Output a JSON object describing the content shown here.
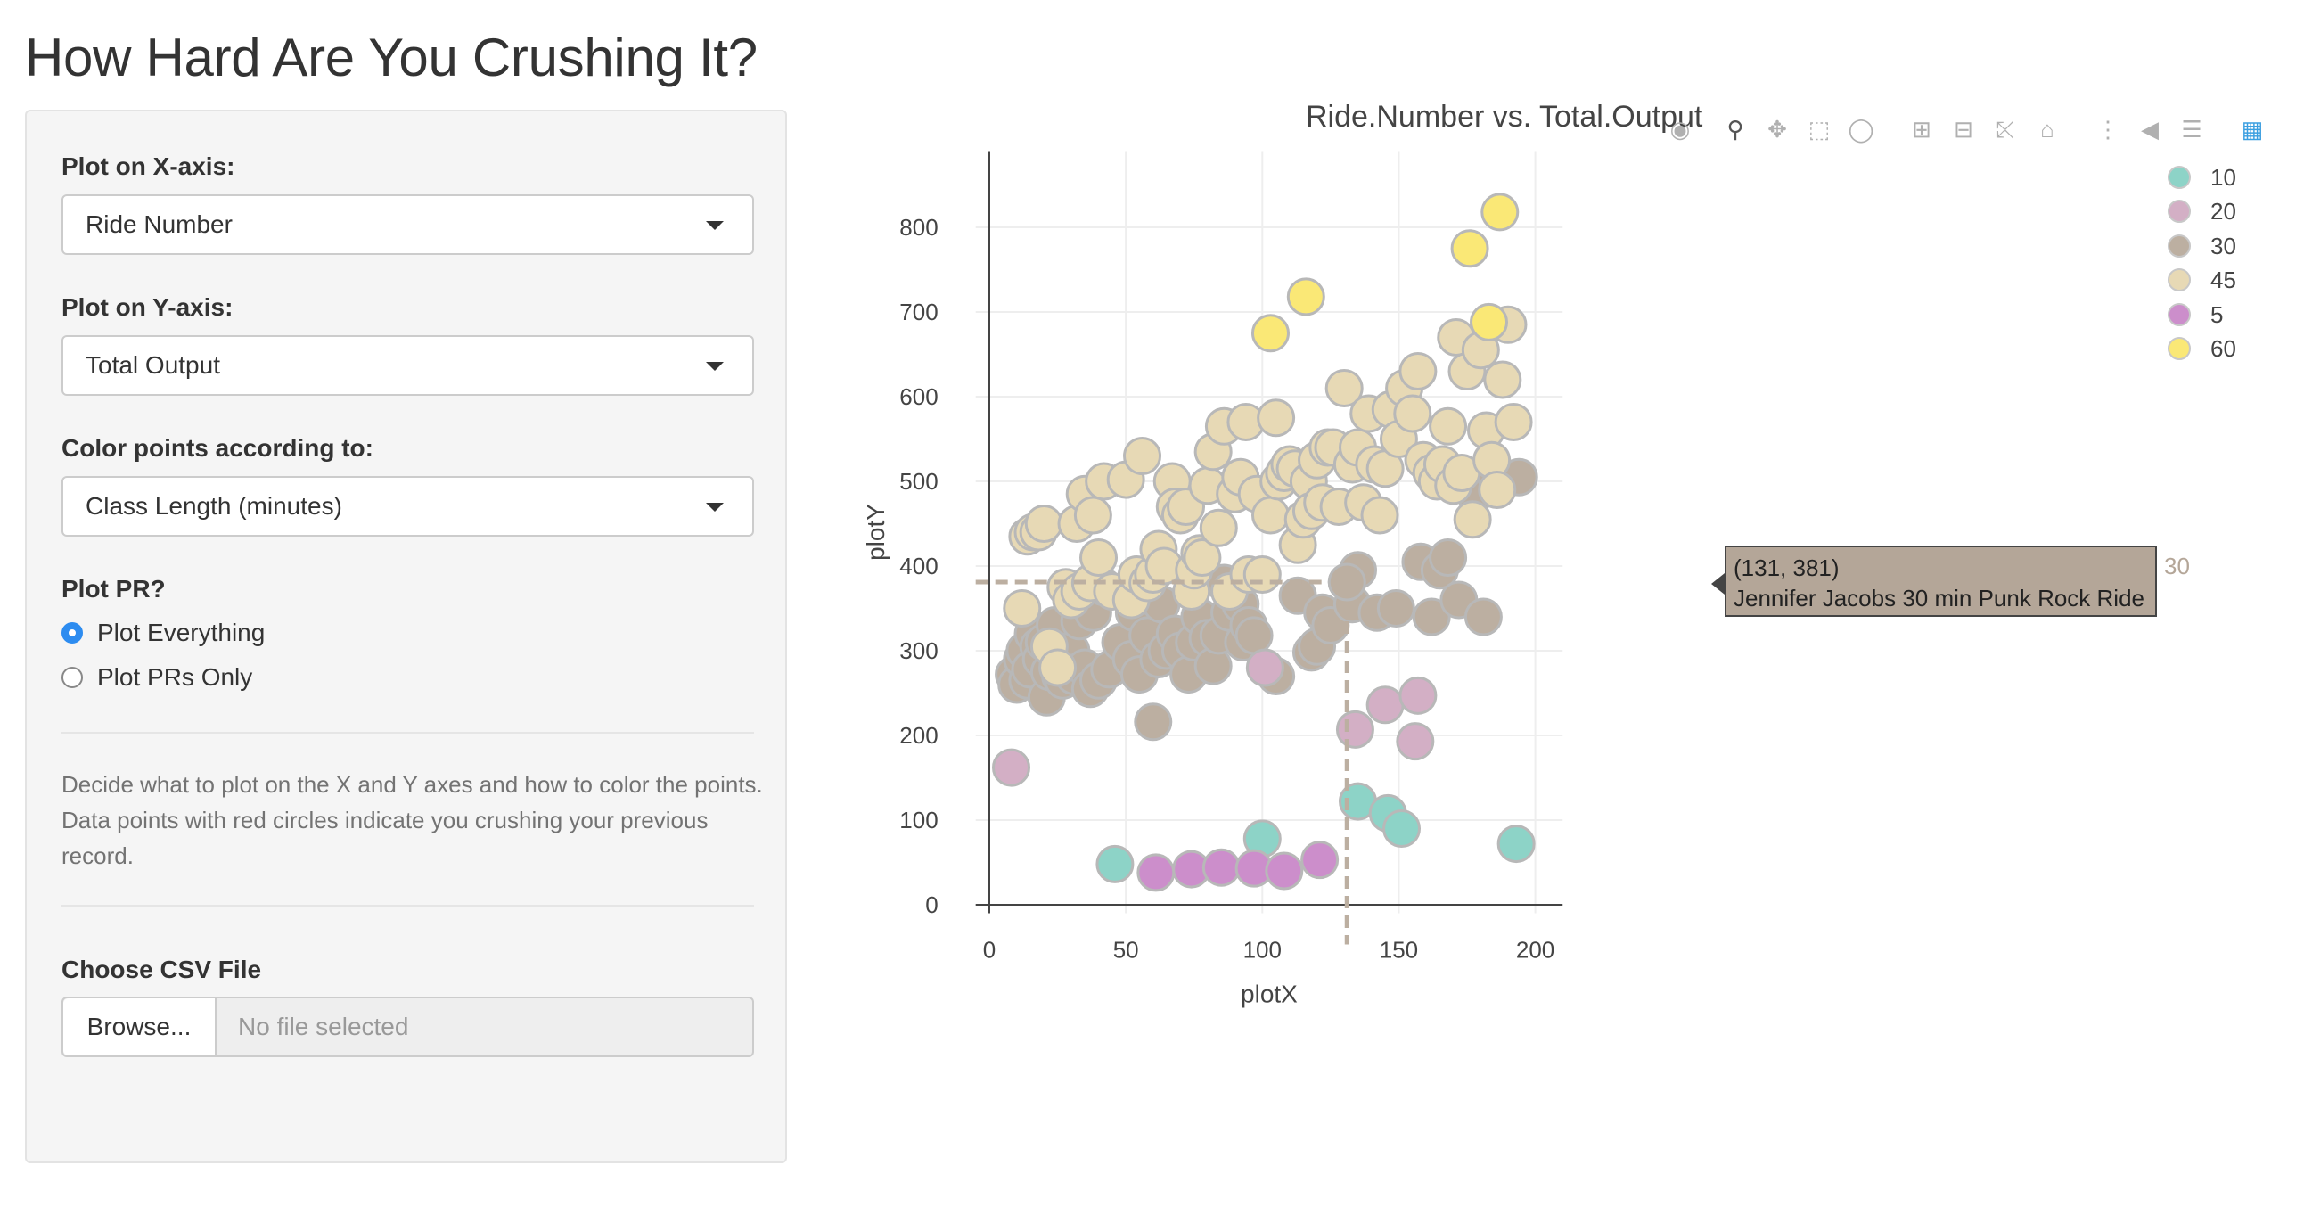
{
  "page": {
    "title": "How Hard Are You Crushing It?"
  },
  "sidebar": {
    "x_label": "Plot on X-axis:",
    "x_value": "Ride Number",
    "y_label": "Plot on Y-axis:",
    "y_value": "Total Output",
    "color_label": "Color points according to:",
    "color_value": "Class Length (minutes)",
    "pr_label": "Plot PR?",
    "pr_options": [
      "Plot Everything",
      "Plot PRs Only"
    ],
    "pr_selected": "Plot Everything",
    "help_text": "Decide what to plot on the X and Y axes and how to color the points. Data points with red circles indicate you crushing your previous record.",
    "file_label": "Choose CSV File",
    "browse_label": "Browse...",
    "file_status": "No file selected"
  },
  "toolbar": {
    "icons": [
      "camera-icon",
      "zoom-icon",
      "pan-icon",
      "box-select-icon",
      "lasso-select-icon",
      "zoom-in-icon",
      "zoom-out-icon",
      "autoscale-icon",
      "reset-axes-icon",
      "spike-lines-icon",
      "hover-closest-icon",
      "hover-compare-icon",
      "plotly-logo-icon"
    ]
  },
  "tooltip": {
    "coords": "(131, 381)",
    "text": "Jennifer Jacobs 30 min Punk Rock Ride",
    "side_label": "30"
  },
  "chart_data": {
    "type": "scatter",
    "title": "Ride.Number vs. Total.Output",
    "xlabel": "plotX",
    "ylabel": "plotY",
    "xlim": [
      -5,
      210
    ],
    "ylim": [
      -10,
      890
    ],
    "xticks": [
      0,
      50,
      100,
      150,
      200
    ],
    "yticks": [
      0,
      100,
      200,
      300,
      400,
      500,
      600,
      700,
      800
    ],
    "grid": true,
    "legend_position": "top-right",
    "colors": {
      "10": "#8dd3c7",
      "20": "#d3afc5",
      "30": "#bcafa1",
      "45": "#e7d9b5",
      "5": "#cc8ecb",
      "60": "#fae876"
    },
    "series": [
      {
        "name": "10",
        "x": [
          46,
          100,
          135,
          146,
          151,
          193
        ],
        "y": [
          48,
          78,
          122,
          108,
          90,
          72
        ]
      },
      {
        "name": "20",
        "x": [
          8,
          101,
          134,
          145,
          156,
          157
        ],
        "y": [
          162,
          280,
          207,
          236,
          193,
          247
        ]
      },
      {
        "name": "5",
        "x": [
          61,
          74,
          85,
          97,
          108,
          121
        ],
        "y": [
          38,
          42,
          44,
          43,
          40,
          53
        ]
      },
      {
        "name": "60",
        "x": [
          103,
          116,
          176,
          183,
          187
        ],
        "y": [
          675,
          718,
          775,
          688,
          818
        ]
      },
      {
        "name": "30",
        "x": [
          9,
          10,
          12,
          13,
          14,
          15,
          16,
          18,
          19,
          20,
          21,
          22,
          24,
          25,
          26,
          27,
          28,
          30,
          31,
          33,
          35,
          37,
          38,
          40,
          42,
          44,
          48,
          52,
          53,
          55,
          56,
          58,
          60,
          62,
          63,
          65,
          68,
          70,
          73,
          75,
          76,
          77,
          80,
          82,
          84,
          86,
          88,
          90,
          92,
          93,
          95,
          97,
          105,
          113,
          118,
          120,
          122,
          125,
          131,
          133,
          135,
          142,
          149,
          158,
          162,
          165,
          168,
          172,
          178,
          181,
          185,
          194
        ],
        "y": [
          272,
          260,
          290,
          300,
          265,
          278,
          320,
          305,
          290,
          310,
          245,
          275,
          330,
          300,
          270,
          265,
          285,
          300,
          270,
          335,
          280,
          255,
          345,
          265,
          375,
          278,
          310,
          290,
          345,
          272,
          365,
          318,
          216,
          290,
          355,
          300,
          320,
          300,
          272,
          310,
          395,
          340,
          315,
          282,
          318,
          380,
          345,
          370,
          355,
          310,
          330,
          318,
          270,
          365,
          298,
          305,
          345,
          330,
          381,
          355,
          395,
          345,
          350,
          405,
          340,
          395,
          410,
          360,
          485,
          340,
          510,
          505
        ]
      },
      {
        "name": "45",
        "x": [
          12,
          14,
          16,
          18,
          20,
          22,
          25,
          28,
          30,
          32,
          33,
          35,
          37,
          38,
          40,
          42,
          45,
          50,
          52,
          54,
          56,
          58,
          60,
          62,
          64,
          67,
          68,
          70,
          72,
          74,
          75,
          77,
          78,
          80,
          82,
          84,
          86,
          88,
          90,
          92,
          94,
          95,
          98,
          100,
          103,
          105,
          106,
          108,
          110,
          112,
          113,
          115,
          117,
          118,
          120,
          122,
          124,
          126,
          128,
          130,
          133,
          135,
          137,
          139,
          141,
          143,
          145,
          147,
          150,
          152,
          155,
          157,
          159,
          162,
          164,
          166,
          168,
          170,
          171,
          173,
          175,
          177,
          180,
          182,
          184,
          186,
          188,
          190,
          192
        ],
        "y": [
          350,
          435,
          440,
          440,
          450,
          305,
          280,
          375,
          360,
          450,
          370,
          485,
          380,
          460,
          410,
          500,
          370,
          502,
          360,
          390,
          530,
          380,
          390,
          420,
          400,
          500,
          470,
          460,
          470,
          370,
          395,
          415,
          410,
          495,
          535,
          445,
          565,
          370,
          485,
          505,
          570,
          390,
          485,
          390,
          460,
          575,
          500,
          510,
          520,
          515,
          425,
          455,
          500,
          465,
          525,
          475,
          540,
          540,
          470,
          610,
          520,
          540,
          475,
          580,
          520,
          460,
          515,
          585,
          550,
          610,
          580,
          630,
          525,
          510,
          500,
          520,
          565,
          495,
          670,
          510,
          630,
          455,
          655,
          560,
          525,
          490,
          620,
          685,
          570
        ]
      }
    ]
  }
}
